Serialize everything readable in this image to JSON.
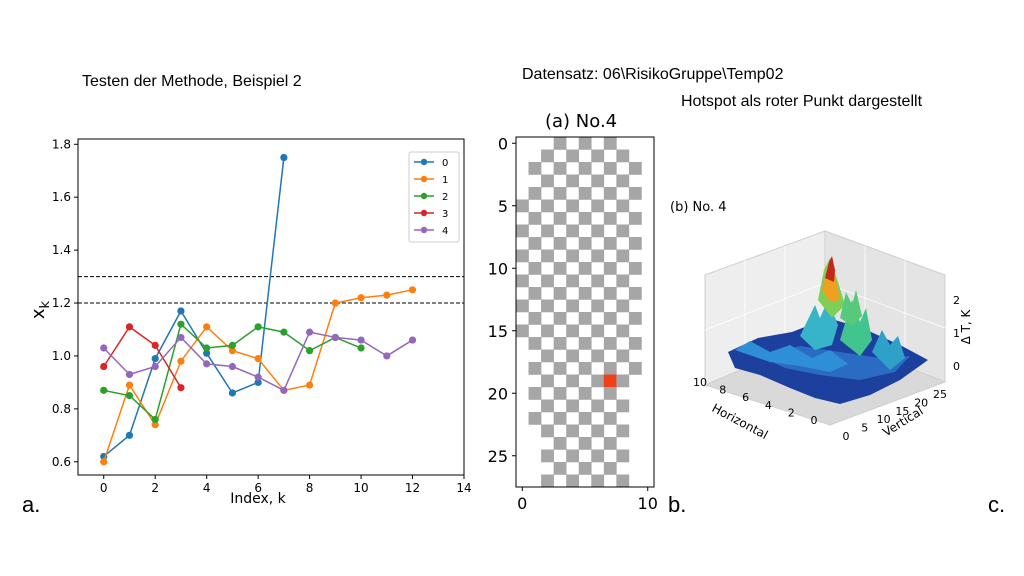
{
  "slide": {
    "left_title": "Testen der Methode, Beispiel 2",
    "dataset": "Datensatz: 06\\RisikoGruppe\\Temp02",
    "hotspot_note": "Hotspot als roter Punkt dargestellt",
    "label_a": "a.",
    "label_b": "b.",
    "label_c": "c."
  },
  "colors": {
    "series": [
      "#1f77b4",
      "#ff7f0e",
      "#2ca02c",
      "#d62728",
      "#9467bd"
    ],
    "checker": "#a6a6a6",
    "hotspot": "#f0401a"
  },
  "chart_data": [
    {
      "type": "line",
      "title": "",
      "xlabel": "Index, k",
      "ylabel": "x",
      "ylabel_subscript": "k",
      "xlim": [
        -1,
        14
      ],
      "ylim": [
        0.55,
        1.82
      ],
      "xticks": [
        0,
        2,
        4,
        6,
        8,
        10,
        12,
        14
      ],
      "yticks": [
        0.6,
        0.8,
        1.0,
        1.2,
        1.4,
        1.6,
        1.8
      ],
      "hlines": [
        1.2,
        1.3
      ],
      "legend_position": "top-right",
      "series": [
        {
          "name": "0",
          "x": [
            0,
            1,
            2,
            3,
            4,
            5,
            6,
            7
          ],
          "values": [
            0.62,
            0.7,
            0.99,
            1.17,
            1.01,
            0.86,
            0.9,
            1.75
          ]
        },
        {
          "name": "1",
          "x": [
            0,
            1,
            2,
            3,
            4,
            5,
            6,
            7,
            8,
            9,
            10,
            11,
            12
          ],
          "values": [
            0.6,
            0.89,
            0.74,
            0.98,
            1.11,
            1.02,
            0.99,
            0.87,
            0.89,
            1.2,
            1.22,
            1.23,
            1.25
          ]
        },
        {
          "name": "2",
          "x": [
            0,
            1,
            2,
            3,
            4,
            5,
            6,
            7,
            8,
            9,
            10
          ],
          "values": [
            0.87,
            0.85,
            0.76,
            1.12,
            1.03,
            1.04,
            1.11,
            1.09,
            1.02,
            1.07,
            1.03
          ]
        },
        {
          "name": "3",
          "x": [
            0,
            1,
            2,
            3
          ],
          "values": [
            0.96,
            1.11,
            1.04,
            0.88
          ]
        },
        {
          "name": "4",
          "x": [
            0,
            1,
            2,
            3,
            4,
            5,
            6,
            7,
            8,
            9,
            10,
            11,
            12
          ],
          "values": [
            1.03,
            0.93,
            0.96,
            1.07,
            0.97,
            0.96,
            0.92,
            0.87,
            1.09,
            1.07,
            1.06,
            1.0,
            1.06
          ]
        }
      ]
    },
    {
      "type": "heatmap",
      "title": "(a) No.4",
      "xlim": [
        -0.5,
        10.5
      ],
      "ylim": [
        27.5,
        -0.5
      ],
      "xticks": [
        0,
        10
      ],
      "yticks": [
        0,
        5,
        10,
        15,
        20,
        25
      ],
      "row_spans": [
        [
          3,
          8
        ],
        [
          2,
          8
        ],
        [
          1,
          9
        ],
        [
          1,
          9
        ],
        [
          0,
          9
        ],
        [
          0,
          9
        ],
        [
          0,
          9
        ],
        [
          0,
          9
        ],
        [
          0,
          9
        ],
        [
          0,
          9
        ],
        [
          0,
          9
        ],
        [
          0,
          9
        ],
        [
          0,
          9
        ],
        [
          0,
          9
        ],
        [
          0,
          9
        ],
        [
          0,
          9
        ],
        [
          1,
          9
        ],
        [
          1,
          9
        ],
        [
          1,
          9
        ],
        [
          1,
          8
        ],
        [
          1,
          8
        ],
        [
          1,
          8
        ],
        [
          1,
          8
        ],
        [
          1,
          8
        ],
        [
          2,
          8
        ],
        [
          2,
          8
        ],
        [
          2,
          8
        ],
        [
          2,
          8
        ]
      ],
      "hotspot": {
        "col": 7,
        "row": 19
      }
    },
    {
      "type": "surface",
      "title": "(b) No. 4",
      "xlabel": "Horizontal",
      "ylabel": "Vertical",
      "zlabel": "Δ T, K",
      "horizontal_ticks": [
        0,
        2,
        4,
        6,
        8,
        10
      ],
      "vertical_ticks": [
        0,
        5,
        10,
        15,
        20,
        25
      ],
      "z_ticks": [
        0,
        1,
        2
      ],
      "peak_value": 2.3
    }
  ]
}
